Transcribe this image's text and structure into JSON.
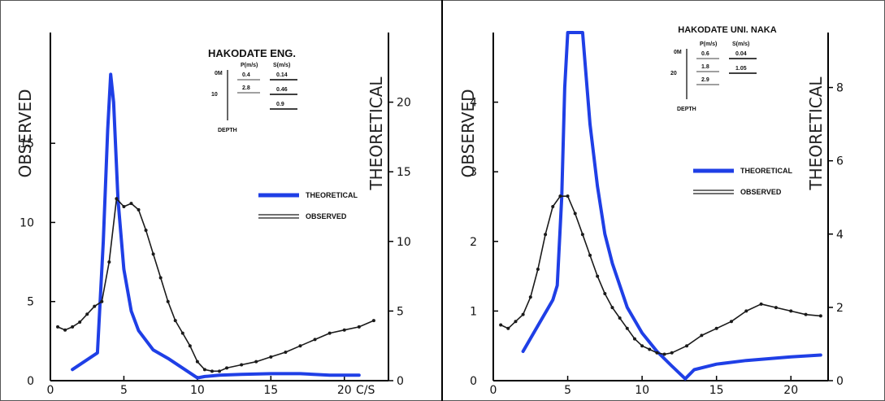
{
  "colors": {
    "theoretical": "#1f3fe6",
    "observed": "#1a1a1a",
    "axes": "#000000"
  },
  "chart_data": [
    {
      "type": "line",
      "title": "HAKODATE  ENG.",
      "xlabel": "",
      "ylabel": "OBSERVED",
      "y2label": "THEORETICAL",
      "x_unit_label": "C/S",
      "xlim": [
        0,
        23
      ],
      "ylim": [
        0,
        22
      ],
      "y2lim": [
        0,
        25
      ],
      "xticks": [
        "0",
        "5",
        "10",
        "15",
        "20"
      ],
      "yticks": [
        "0",
        "5",
        "10",
        "15"
      ],
      "y2ticks": [
        "0",
        "5",
        "10",
        "15",
        "20"
      ],
      "legend": [
        "THEORETICAL",
        "OBSERVED"
      ],
      "inset": {
        "top_label": "0M",
        "depth_labels": [
          "10"
        ],
        "axis_label": "DEPTH",
        "headers": [
          "P(m/s)",
          "S(m/s)"
        ],
        "p_values": [
          "0.4",
          "2.8"
        ],
        "s_values": [
          "0.14",
          "0.46",
          "0.9"
        ]
      },
      "series": [
        {
          "name": "THEORETICAL",
          "axis": "y2",
          "x": [
            1.5,
            3.2,
            3.6,
            3.9,
            4.1,
            4.3,
            4.6,
            5.0,
            5.5,
            6.0,
            7.0,
            8.0,
            9.0,
            10.0,
            10.5,
            11.5,
            13.0,
            15.0,
            17.0,
            19.0,
            21.0
          ],
          "y": [
            0.8,
            2.0,
            10.0,
            18.0,
            22.0,
            20.0,
            13.0,
            8.0,
            5.0,
            3.6,
            2.2,
            1.6,
            0.9,
            0.2,
            0.3,
            0.4,
            0.45,
            0.5,
            0.5,
            0.4,
            0.4
          ]
        },
        {
          "name": "OBSERVED",
          "axis": "y",
          "x": [
            0.5,
            1.0,
            1.5,
            2.0,
            2.5,
            3.0,
            3.5,
            4.0,
            4.5,
            5.0,
            5.5,
            6.0,
            6.5,
            7.0,
            7.5,
            8.0,
            8.5,
            9.0,
            9.5,
            10.0,
            10.5,
            11.0,
            11.5,
            12.0,
            13.0,
            14.0,
            15.0,
            16.0,
            17.0,
            18.0,
            19.0,
            20.0,
            21.0,
            22.0
          ],
          "y": [
            3.4,
            3.2,
            3.4,
            3.7,
            4.2,
            4.7,
            5.0,
            7.5,
            11.5,
            11.0,
            11.2,
            10.8,
            9.5,
            8.0,
            6.5,
            5.0,
            3.8,
            3.0,
            2.2,
            1.2,
            0.7,
            0.6,
            0.6,
            0.8,
            1.0,
            1.2,
            1.5,
            1.8,
            2.2,
            2.6,
            3.0,
            3.2,
            3.4,
            3.8
          ]
        }
      ]
    },
    {
      "type": "line",
      "title": "HAKODATE UNI. NAKA",
      "xlabel": "",
      "ylabel": "OBSERVED",
      "y2label": "THEORETICAL",
      "xlim": [
        0,
        22.5
      ],
      "ylim": [
        0,
        5
      ],
      "y2lim": [
        0,
        9.5
      ],
      "xticks": [
        "0",
        "5",
        "10",
        "15",
        "20"
      ],
      "yticks": [
        "0",
        "1",
        "2",
        "3",
        "4"
      ],
      "y2ticks": [
        "0",
        "2",
        "4",
        "6",
        "8"
      ],
      "legend": [
        "THEORETICAL",
        "OBSERVED"
      ],
      "inset": {
        "top_label": "0M",
        "depth_labels": [
          "20"
        ],
        "axis_label": "DEPTH",
        "headers": [
          "P(m/s)",
          "S(m/s)"
        ],
        "p_values": [
          "0.6",
          "1.8",
          "2.9"
        ],
        "s_values": [
          "0.04",
          "1.05"
        ]
      },
      "series": [
        {
          "name": "THEORETICAL",
          "axis": "y2",
          "x": [
            2.0,
            3.0,
            4.0,
            4.3,
            4.6,
            4.8,
            5.0,
            6.0,
            6.5,
            7.0,
            7.5,
            8.0,
            9.0,
            10.0,
            11.0,
            12.0,
            12.9,
            13.5,
            15.0,
            17.0,
            20.0,
            22.0
          ],
          "y": [
            0.8,
            1.5,
            2.2,
            2.6,
            5.0,
            8.0,
            9.5,
            9.5,
            7.0,
            5.3,
            4.0,
            3.2,
            2.0,
            1.3,
            0.8,
            0.4,
            0.05,
            0.3,
            0.45,
            0.55,
            0.65,
            0.7
          ]
        },
        {
          "name": "OBSERVED",
          "axis": "y",
          "x": [
            0.5,
            1.0,
            1.5,
            2.0,
            2.5,
            3.0,
            3.5,
            4.0,
            4.5,
            5.0,
            5.5,
            6.0,
            6.5,
            7.0,
            7.5,
            8.0,
            8.5,
            9.0,
            9.5,
            10.0,
            10.5,
            11.0,
            11.5,
            12.0,
            13.0,
            14.0,
            15.0,
            16.0,
            17.0,
            18.0,
            19.0,
            20.0,
            21.0,
            22.0
          ],
          "y": [
            0.8,
            0.75,
            0.85,
            0.95,
            1.2,
            1.6,
            2.1,
            2.5,
            2.65,
            2.65,
            2.4,
            2.1,
            1.8,
            1.5,
            1.25,
            1.05,
            0.9,
            0.75,
            0.6,
            0.5,
            0.45,
            0.4,
            0.38,
            0.4,
            0.5,
            0.65,
            0.75,
            0.85,
            1.0,
            1.1,
            1.05,
            1.0,
            0.95,
            0.93
          ]
        }
      ]
    }
  ]
}
